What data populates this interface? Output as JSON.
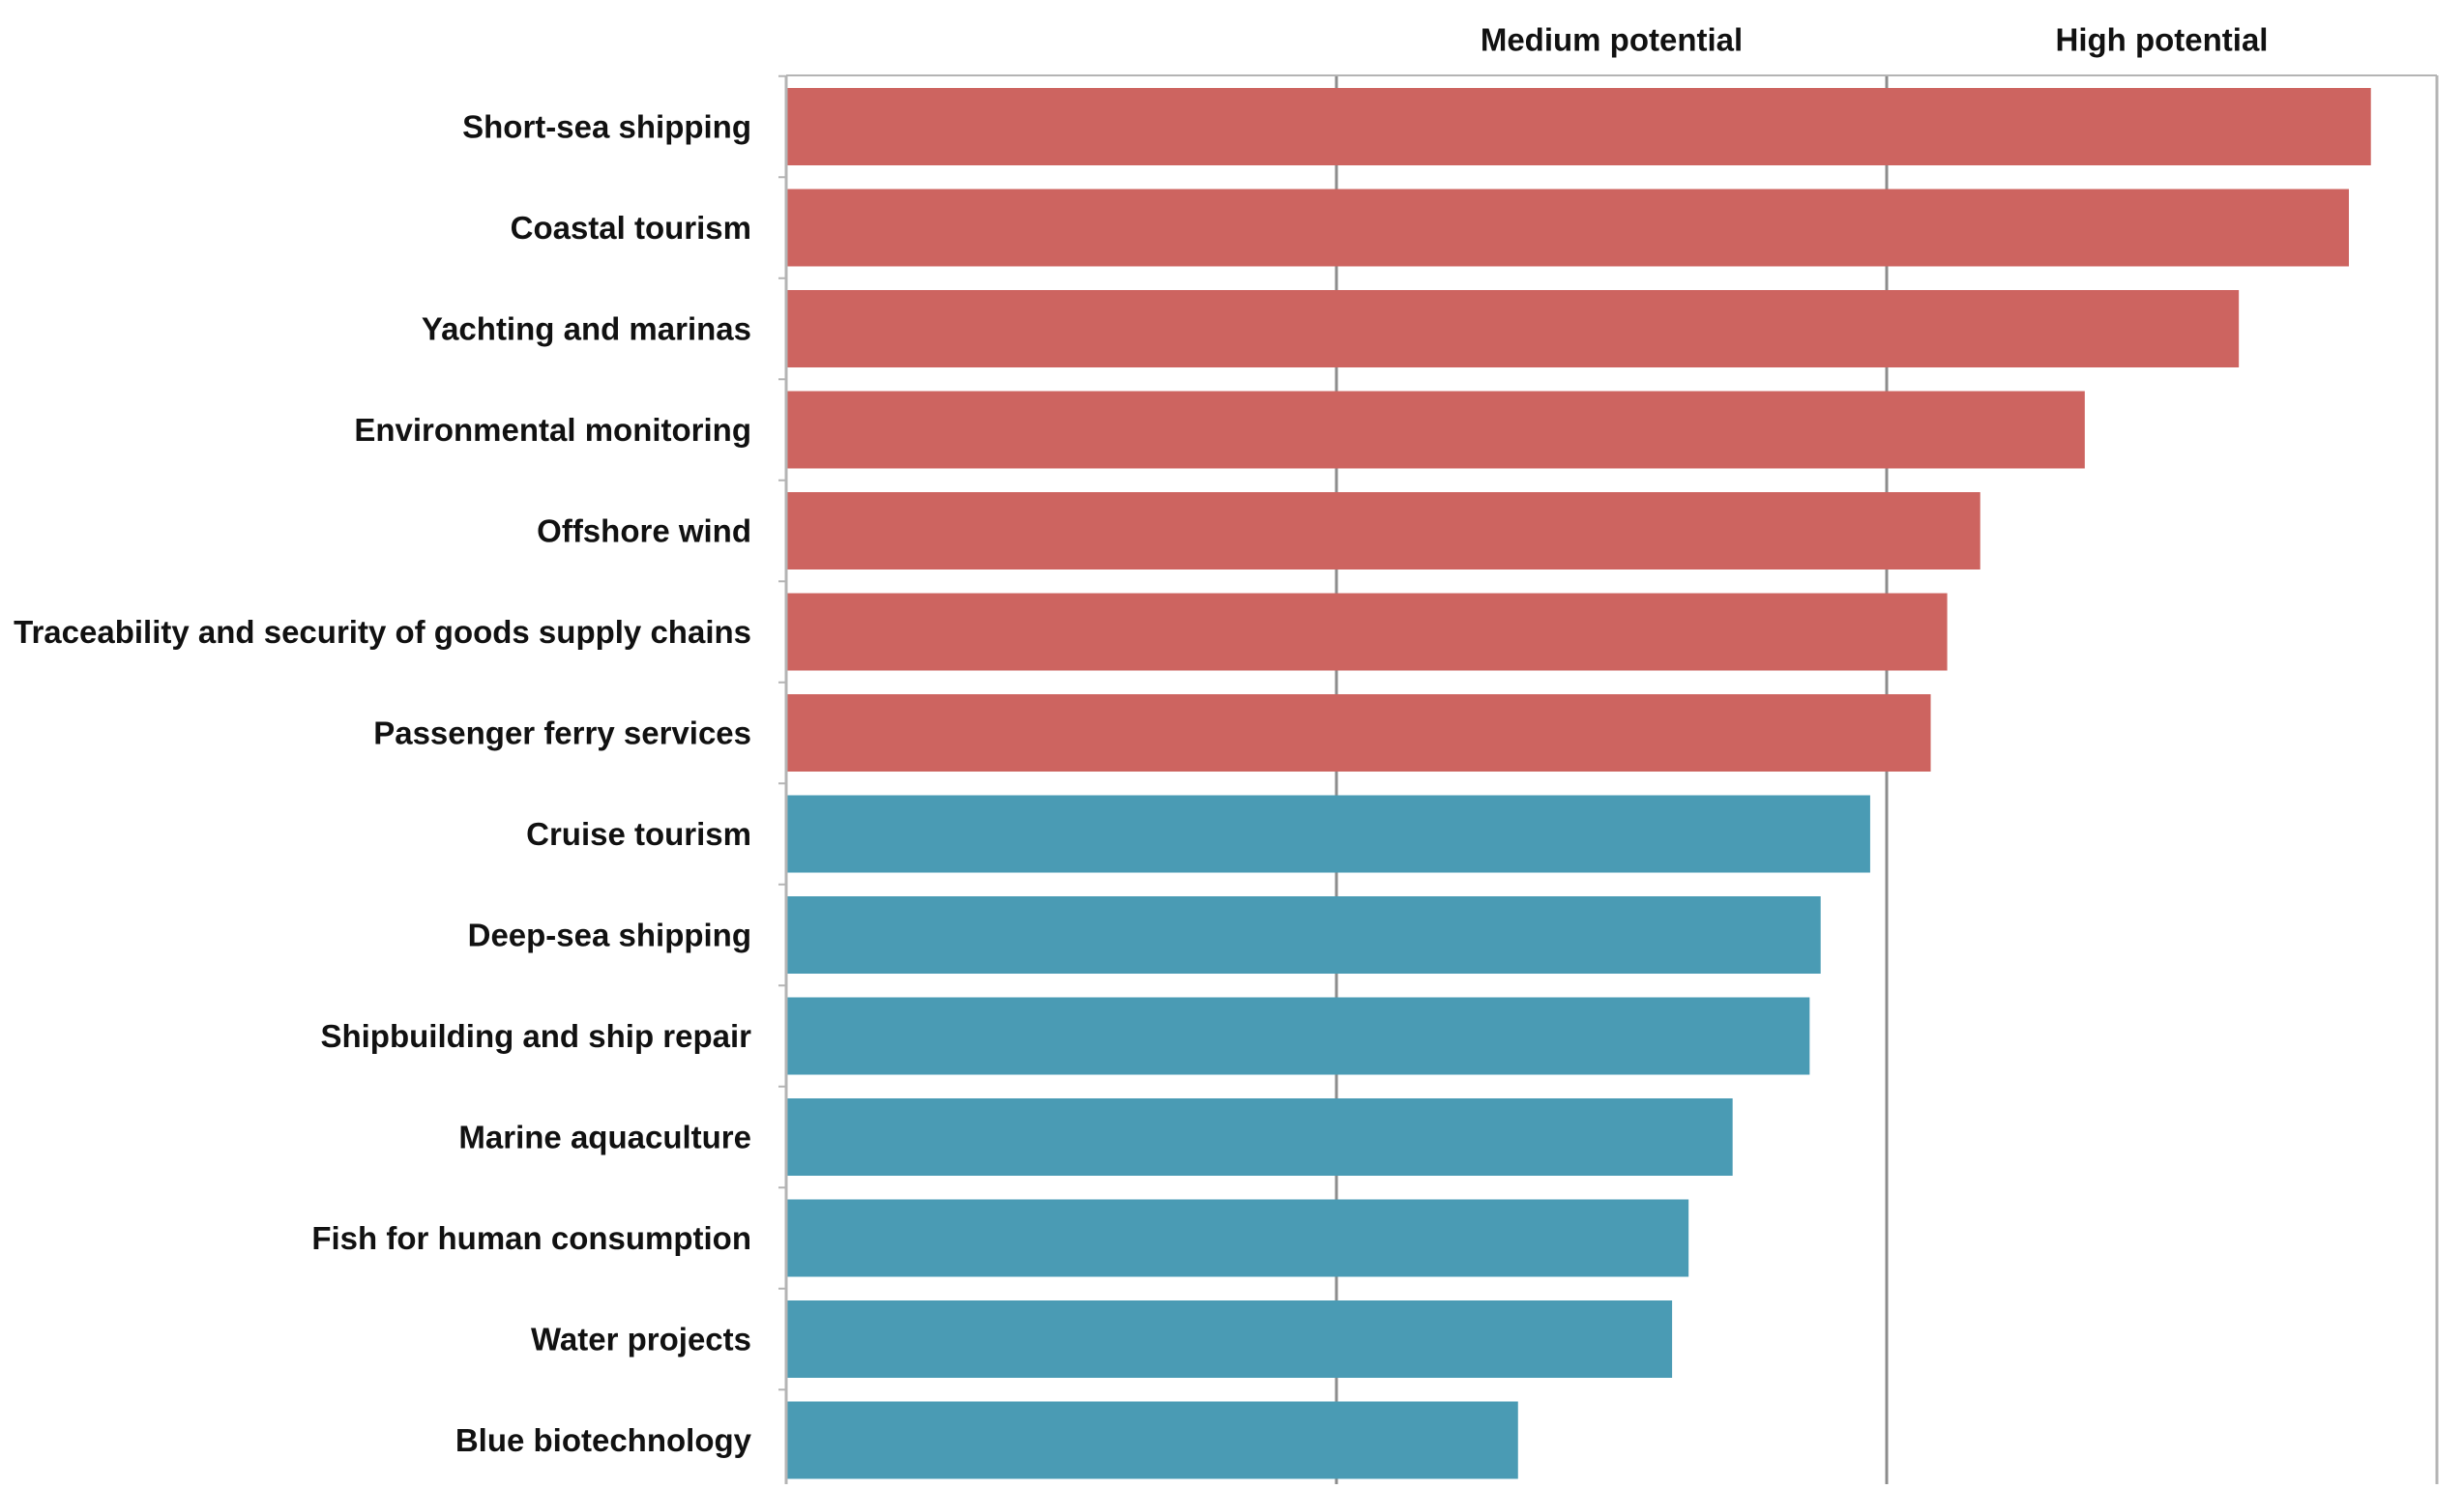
{
  "chart_data": {
    "type": "bar",
    "orientation": "horizontal",
    "title": "",
    "xlabel": "",
    "ylabel": "",
    "xlim": [
      0,
      3
    ],
    "grid": true,
    "zone_labels": [
      "Medium potential",
      "High potential"
    ],
    "categories": [
      "Short-sea shipping",
      "Coastal tourism",
      "Yachting and marinas",
      "Environmental monitoring",
      "Offshore wind",
      "Traceability and security of goods supply chains",
      "Passenger ferry services",
      "Cruise tourism",
      "Deep-sea shipping",
      "Shipbuilding and ship repair",
      "Marine aquaculture",
      "Fish for human consumption",
      "Water projects",
      "Blue biotechnology"
    ],
    "values": [
      2.88,
      2.84,
      2.64,
      2.36,
      2.17,
      2.11,
      2.08,
      1.97,
      1.88,
      1.86,
      1.72,
      1.64,
      1.61,
      1.33
    ],
    "bar_colors": [
      "#cd6460",
      "#cd6460",
      "#cd6460",
      "#cd6460",
      "#cd6460",
      "#cd6460",
      "#cd6460",
      "#4a9bb4",
      "#4a9bb4",
      "#4a9bb4",
      "#4a9bb4",
      "#4a9bb4",
      "#4a9bb4",
      "#4a9bb4"
    ]
  },
  "colors": {
    "high_bar": "#cd6460",
    "medium_bar": "#4a9bb4",
    "gridline": "#8c8c8c",
    "axis": "#b4b4b4",
    "text": "#111111"
  }
}
